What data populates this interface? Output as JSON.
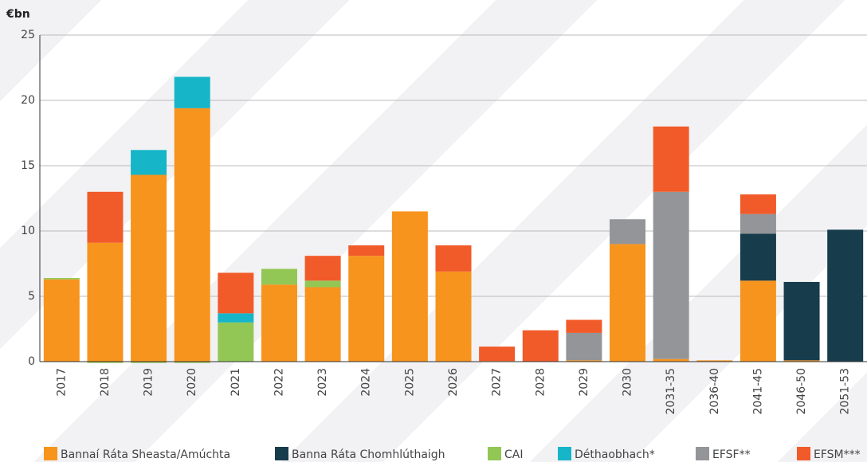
{
  "chart_data": {
    "type": "stacked-bar",
    "y_label": "€bn",
    "categories": [
      "2017",
      "2018",
      "2019",
      "2020",
      "2021",
      "2022",
      "2023",
      "2024",
      "2025",
      "2026",
      "2027",
      "2028",
      "2029",
      "2030",
      "2031-35",
      "2036-40",
      "2041-45",
      "2046-50",
      "2051-53"
    ],
    "series": [
      {
        "name": "Bannaí Ráta Sheasta/Amúchta",
        "color": "#f7941d",
        "values": [
          6.3,
          9.1,
          14.3,
          19.4,
          0,
          5.9,
          5.7,
          8.1,
          11.5,
          6.9,
          0.05,
          0,
          0.1,
          9.0,
          0.2,
          0.1,
          6.2,
          0.1,
          0
        ]
      },
      {
        "name": "Banna Ráta Chomhlúthaigh",
        "color": "#173c4c",
        "values": [
          0,
          0,
          0,
          0,
          0,
          0,
          0,
          0,
          0,
          0,
          0,
          0,
          0,
          0,
          0,
          0,
          3.6,
          6.0,
          10.1
        ]
      },
      {
        "name": "CAI",
        "color": "#92c755",
        "values": [
          0.1,
          -0.1,
          -0.1,
          -0.1,
          3.0,
          1.2,
          0.5,
          0,
          0,
          0,
          0,
          0,
          0,
          0,
          0,
          0,
          0,
          0,
          0
        ]
      },
      {
        "name": "Déthaobhach*",
        "color": "#16b5c8",
        "values": [
          0,
          0,
          1.9,
          2.4,
          0.7,
          0,
          0,
          0,
          0,
          0,
          0,
          0,
          0,
          0,
          0,
          0,
          0,
          0,
          0
        ]
      },
      {
        "name": "EFSF**",
        "color": "#939598",
        "values": [
          0,
          0,
          0,
          0,
          0,
          0,
          0,
          0,
          0,
          0,
          0,
          0,
          2.1,
          1.9,
          12.8,
          0,
          1.5,
          0,
          0
        ]
      },
      {
        "name": "EFSM***",
        "color": "#f15a29",
        "values": [
          0,
          3.9,
          0,
          0,
          3.1,
          0,
          1.9,
          0.8,
          0,
          2.0,
          1.1,
          2.4,
          1.0,
          0,
          5.0,
          0,
          1.5,
          0,
          0
        ]
      }
    ],
    "ylim": [
      0,
      25
    ],
    "yticks": [
      0,
      5,
      10,
      15,
      20,
      25
    ],
    "grid": true
  }
}
